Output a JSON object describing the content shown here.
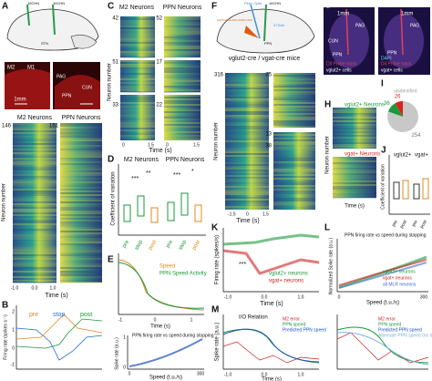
{
  "A": {
    "letter": "A",
    "probe1": "16CHN",
    "probe2": "16CHN",
    "stn": "STN",
    "m2": "M2",
    "m1": "M1",
    "pag": "PAG",
    "cun": "CUN",
    "ppn": "PPN",
    "scale1": "1mm",
    "heat_m2": "M2 Neurons",
    "heat_ppn": "PPN Neurons",
    "n_m2": "146",
    "n_ppn": "151",
    "ylabel": "Neuron number",
    "xlabel": "Time (s)",
    "xticks": [
      "-1.0",
      "0.0",
      "1.0"
    ]
  },
  "B": {
    "letter": "B",
    "ylabel": "Firing rate (spikes s⁻¹)",
    "pre": "pre",
    "stop": "stop",
    "post": "post",
    "xticks": [
      "-1.5",
      "-1.0",
      "-0.5",
      "0",
      "0.5",
      "1.0",
      "1.5"
    ],
    "yticks": [
      "2",
      "1",
      "0",
      "-1"
    ]
  },
  "C": {
    "letter": "C",
    "m2": "M2 Neurons",
    "ppn": "PPN Neurons",
    "ticks": [
      "42",
      "51",
      "33",
      "52",
      "17",
      "22"
    ],
    "ylabel": "Neuron number",
    "xlabel": "Time (s)",
    "xticks": [
      "0",
      "1.5",
      "0",
      "1.5"
    ]
  },
  "D": {
    "letter": "D",
    "m2": "M2 Neurons",
    "ppn": "PPN Neurons",
    "ylabel": "Coefficient of variation",
    "stars": [
      "***",
      "**",
      "***",
      "*"
    ],
    "xlabels": [
      "pre",
      "stop",
      "post",
      "pre",
      "stop",
      "post"
    ]
  },
  "E": {
    "letter": "E",
    "speed": "Speed",
    "ppn": "PPN Speed Activity",
    "xlabel": "Time (s)",
    "xticks": [
      "-1",
      "0",
      "1"
    ],
    "inset_title": "PPN firing rate vs speed during stopping",
    "inset_ylabel": "Spike rate (a.u.)",
    "inset_xlabel": "Speed (t.u./s)",
    "inset_xticks": [
      "0",
      "300"
    ],
    "inset_yticks": [
      "1",
      "0"
    ]
  },
  "F": {
    "letter": "F",
    "fiber": "Fiber Optic",
    "probe": "16CHN",
    "laser": "473nm",
    "ppn": "PPN",
    "virus": "AAV5-EF1a-DIO-ChR2-eYFP",
    "mice": "vglut2-cre / vgat-cre mice",
    "ticks": [
      "316",
      "75",
      "13",
      "38"
    ],
    "ylabel": "Neuron number",
    "xlabel": "Time (s)",
    "xticks": [
      "-1.5",
      "0",
      "1.5"
    ]
  },
  "G": {
    "letter": "G",
    "scale": [
      "1mm",
      "1mm"
    ],
    "left": [
      "PAG",
      "CUN",
      "PPN",
      "DiI Probe track",
      "vglut2+ cells"
    ],
    "right": [
      "PAG",
      "PPN",
      "DAPI",
      "DiI Probe track",
      "vgat+ cells"
    ]
  },
  "H": {
    "letter": "H",
    "vglut": "vglut2+ Neurons",
    "vgat": "vgat+ Neurons",
    "ylabel": "Neuron number",
    "xlabel": "Time (s)"
  },
  "I": {
    "letter": "I",
    "unidentified": "unidentified",
    "counts": [
      254,
      36,
      26
    ],
    "colors": [
      "#c8c8c8",
      "#1a9a3a",
      "#e02020"
    ]
  },
  "J": {
    "letter": "J",
    "vglut": "vglut2+",
    "vgat": "vgat+",
    "ylabel": "Coefficient of variation",
    "xlabels": [
      "pre",
      "post",
      "pre",
      "post"
    ]
  },
  "K": {
    "letter": "K",
    "ylabel": "Firing rate (spikes/s)",
    "vglut": "vglut2+ neurons",
    "vgat": "vgat+ neurons",
    "stars": "***",
    "xlabel": "Time (s)",
    "xticks": [
      "-1.0",
      "0.0",
      "1.0"
    ]
  },
  "L": {
    "letter": "L",
    "title": "PPN firing rate vs speed during stopping",
    "vglut": "vglut2+ neurons",
    "vgat": "vgat+ neurons",
    "all": "all MLR neurons",
    "ylabel": "Normalized Spike rate (a.u.)",
    "xlabel": "Speed (t.u./s)",
    "xticks": [
      "0",
      "300"
    ]
  },
  "M": {
    "letter": "M",
    "io": "I/O Relation",
    "legend": [
      "M2 error",
      "PPN speed",
      "Predicted PPN speed",
      "Alternate PPN speed (no differentiation)"
    ],
    "ylabel": "Spike rate (a.u.)",
    "xlabel": "Time (s)",
    "xticks": [
      "-1.0",
      "0.0",
      "1.0"
    ]
  }
}
